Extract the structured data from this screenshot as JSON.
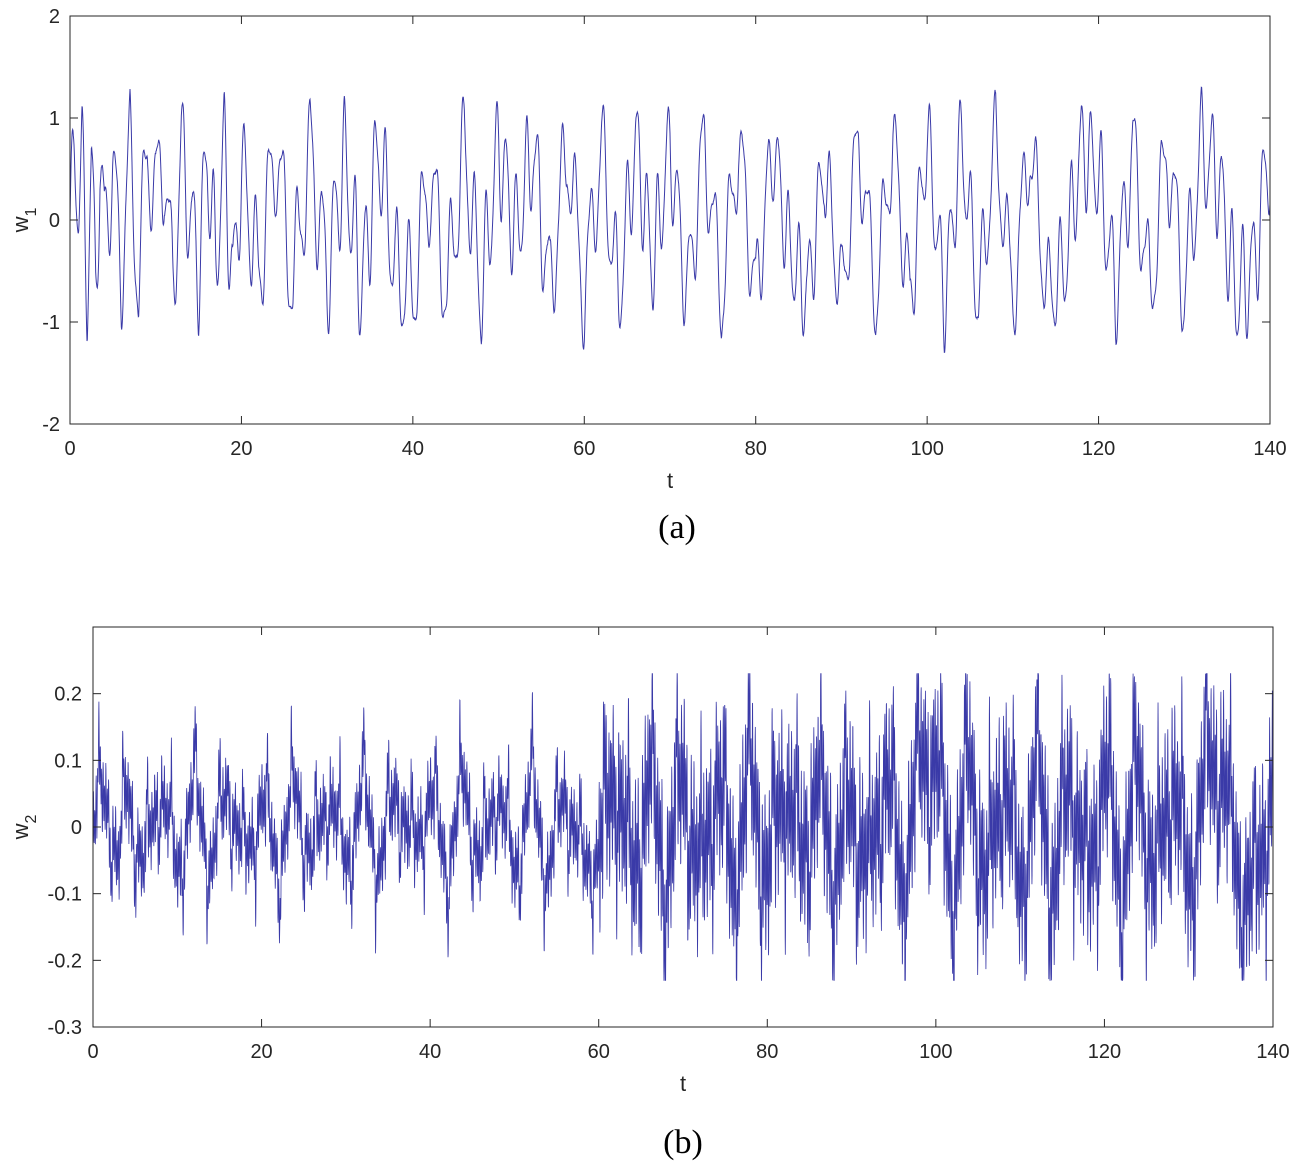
{
  "chart_data": [
    {
      "panel_label": "(a)",
      "type": "line",
      "xlabel": "t",
      "ylabel": {
        "base": "w",
        "subscript": "1"
      },
      "xlim": [
        0,
        140
      ],
      "ylim": [
        -2,
        2
      ],
      "xticks": [
        0,
        20,
        40,
        60,
        80,
        100,
        120,
        140
      ],
      "yticks": [
        2,
        1,
        0,
        -1,
        -2
      ],
      "grid": false,
      "series": [
        {
          "color": "#3a3aa8",
          "envelope": {
            "peak_max": 1.5,
            "trough_min": -1.5
          },
          "samples_t": [
            0,
            0.5,
            1,
            1.4,
            2,
            2.5,
            3,
            3.5,
            4,
            5,
            6,
            7,
            8,
            9,
            10,
            11,
            12,
            13,
            14,
            15,
            16,
            17,
            18,
            19,
            20,
            22,
            24,
            26,
            28,
            30,
            32,
            34,
            36,
            38,
            40,
            42,
            44,
            46,
            48,
            50,
            52,
            54,
            56,
            58,
            60,
            62,
            64,
            66,
            68,
            70,
            72,
            74,
            76,
            78,
            80,
            82,
            84,
            86,
            88,
            90,
            92,
            94,
            96,
            98,
            100,
            102,
            104,
            106,
            108,
            110,
            112,
            114,
            116,
            118,
            120,
            122,
            124,
            126,
            128,
            130,
            132,
            134,
            136,
            138,
            140
          ],
          "samples_w": [
            0,
            1.05,
            0.4,
            1.15,
            -1.25,
            0.9,
            -1.1,
            1.0,
            -0.2,
            0.9,
            -0.95,
            1.3,
            -1.2,
            1.25,
            0.45,
            1.1,
            -1.25,
            1.25,
            0.1,
            -0.9,
            1.2,
            -0.8,
            1.3,
            -1.25,
            0.95,
            -1.0,
            1.3,
            -1.15,
            1.25,
            -1.0,
            1.1,
            -1.25,
            1.35,
            -0.95,
            -1.25,
            0.8,
            -1.3,
            1.3,
            -1.35,
            1.35,
            -0.3,
            1.3,
            -1.3,
            1.35,
            -1.35,
            1.3,
            -1.4,
            1.4,
            -0.8,
            1.35,
            -1.35,
            1.4,
            -1.4,
            1.4,
            -1.35,
            1.35,
            -0.6,
            -1.35,
            1.0,
            -1.4,
            1.45,
            -1.4,
            1.45,
            -1.45,
            1.5,
            -1.45,
            1.45,
            -1.45,
            1.45,
            -1.4,
            1.4,
            -1.35,
            -0.85,
            1.3,
            0.85,
            -1.3,
            1.3,
            -1.35,
            1.3,
            -1.3,
            1.3,
            0.75,
            -1.35,
            -0.9,
            1.3
          ]
        }
      ]
    },
    {
      "panel_label": "(b)",
      "type": "line",
      "xlabel": "t",
      "ylabel": {
        "base": "w",
        "subscript": "2"
      },
      "xlim": [
        0,
        140
      ],
      "ylim": [
        -0.3,
        0.3
      ],
      "xticks": [
        0,
        20,
        40,
        60,
        80,
        100,
        120,
        140
      ],
      "yticks": [
        0.2,
        0.1,
        0,
        -0.1,
        -0.2,
        -0.3
      ],
      "grid": false,
      "series": [
        {
          "color": "#3a3aa8",
          "envelope": {
            "peak_max": 0.23,
            "trough_min": -0.23
          },
          "samples_t": [
            0,
            1,
            2,
            3,
            4,
            6,
            8,
            10,
            12,
            14,
            16,
            18,
            20,
            22,
            24,
            26,
            28,
            30,
            32,
            34,
            36,
            38,
            40,
            42,
            44,
            46,
            48,
            50,
            52,
            54,
            56,
            58,
            60,
            62,
            64,
            66,
            68,
            70,
            72,
            74,
            76,
            78,
            80,
            82,
            84,
            86,
            88,
            90,
            92,
            94,
            96,
            98,
            100,
            102,
            104,
            106,
            108,
            110,
            112,
            114,
            116,
            118,
            120,
            122,
            124,
            126,
            128,
            130,
            132,
            134,
            136,
            138,
            140
          ],
          "samples_w": [
            0,
            0.11,
            0.05,
            -0.13,
            0.12,
            -0.14,
            0.15,
            -0.15,
            0.14,
            -0.13,
            0.14,
            -0.12,
            0.09,
            -0.13,
            0.13,
            -0.12,
            0.13,
            -0.13,
            0.13,
            -0.13,
            0.13,
            -0.09,
            0.12,
            -0.14,
            0.15,
            -0.14,
            0.15,
            -0.16,
            0.15,
            -0.16,
            0.13,
            -0.12,
            -0.1,
            0.19,
            -0.18,
            0.17,
            -0.19,
            0.19,
            -0.2,
            0.18,
            -0.18,
            0.19,
            -0.18,
            0.17,
            -0.11,
            0.14,
            -0.15,
            0.1,
            -0.18,
            0.21,
            -0.2,
            0.21,
            0.23,
            -0.21,
            0.22,
            -0.23,
            0.21,
            -0.22,
            0.21,
            -0.22,
            0.2,
            -0.21,
            0.21,
            -0.21,
            0.2,
            -0.21,
            0.2,
            -0.21,
            0.2,
            0.2,
            -0.2,
            -0.21,
            0.18
          ]
        }
      ]
    }
  ]
}
